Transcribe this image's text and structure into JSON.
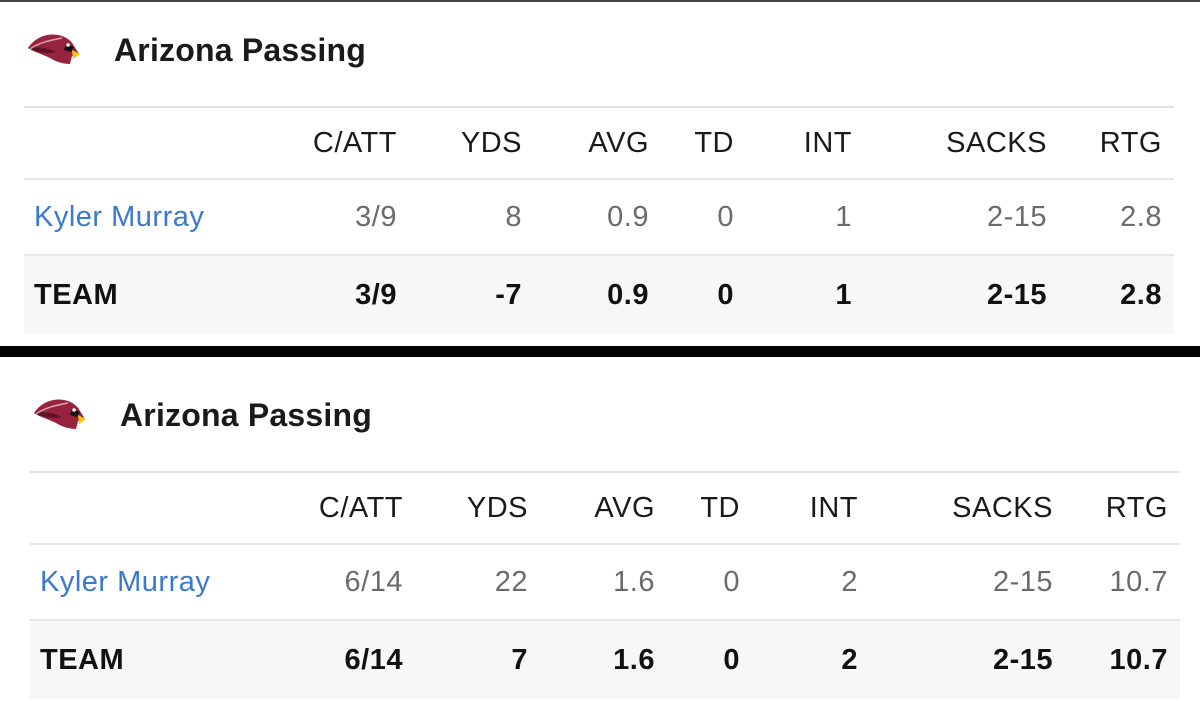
{
  "colors": {
    "player_link": "#3a79cf",
    "team_row_bg": "#f7f7f7",
    "divider": "#000000"
  },
  "icons": {
    "team_logo": "arizona-cardinals-logo-icon"
  },
  "panels": [
    {
      "title": "Arizona Passing",
      "columns": [
        "C/ATT",
        "YDS",
        "AVG",
        "TD",
        "INT",
        "SACKS",
        "RTG"
      ],
      "player": {
        "name": "Kyler Murray",
        "c_att": "3/9",
        "yds": "8",
        "avg": "0.9",
        "td": "0",
        "int": "1",
        "sacks": "2-15",
        "rtg": "2.8"
      },
      "team": {
        "label": "TEAM",
        "c_att": "3/9",
        "yds": "-7",
        "avg": "0.9",
        "td": "0",
        "int": "1",
        "sacks": "2-15",
        "rtg": "2.8"
      }
    },
    {
      "title": "Arizona Passing",
      "columns": [
        "C/ATT",
        "YDS",
        "AVG",
        "TD",
        "INT",
        "SACKS",
        "RTG"
      ],
      "player": {
        "name": "Kyler Murray",
        "c_att": "6/14",
        "yds": "22",
        "avg": "1.6",
        "td": "0",
        "int": "2",
        "sacks": "2-15",
        "rtg": "10.7"
      },
      "team": {
        "label": "TEAM",
        "c_att": "6/14",
        "yds": "7",
        "avg": "1.6",
        "td": "0",
        "int": "2",
        "sacks": "2-15",
        "rtg": "10.7"
      }
    }
  ]
}
